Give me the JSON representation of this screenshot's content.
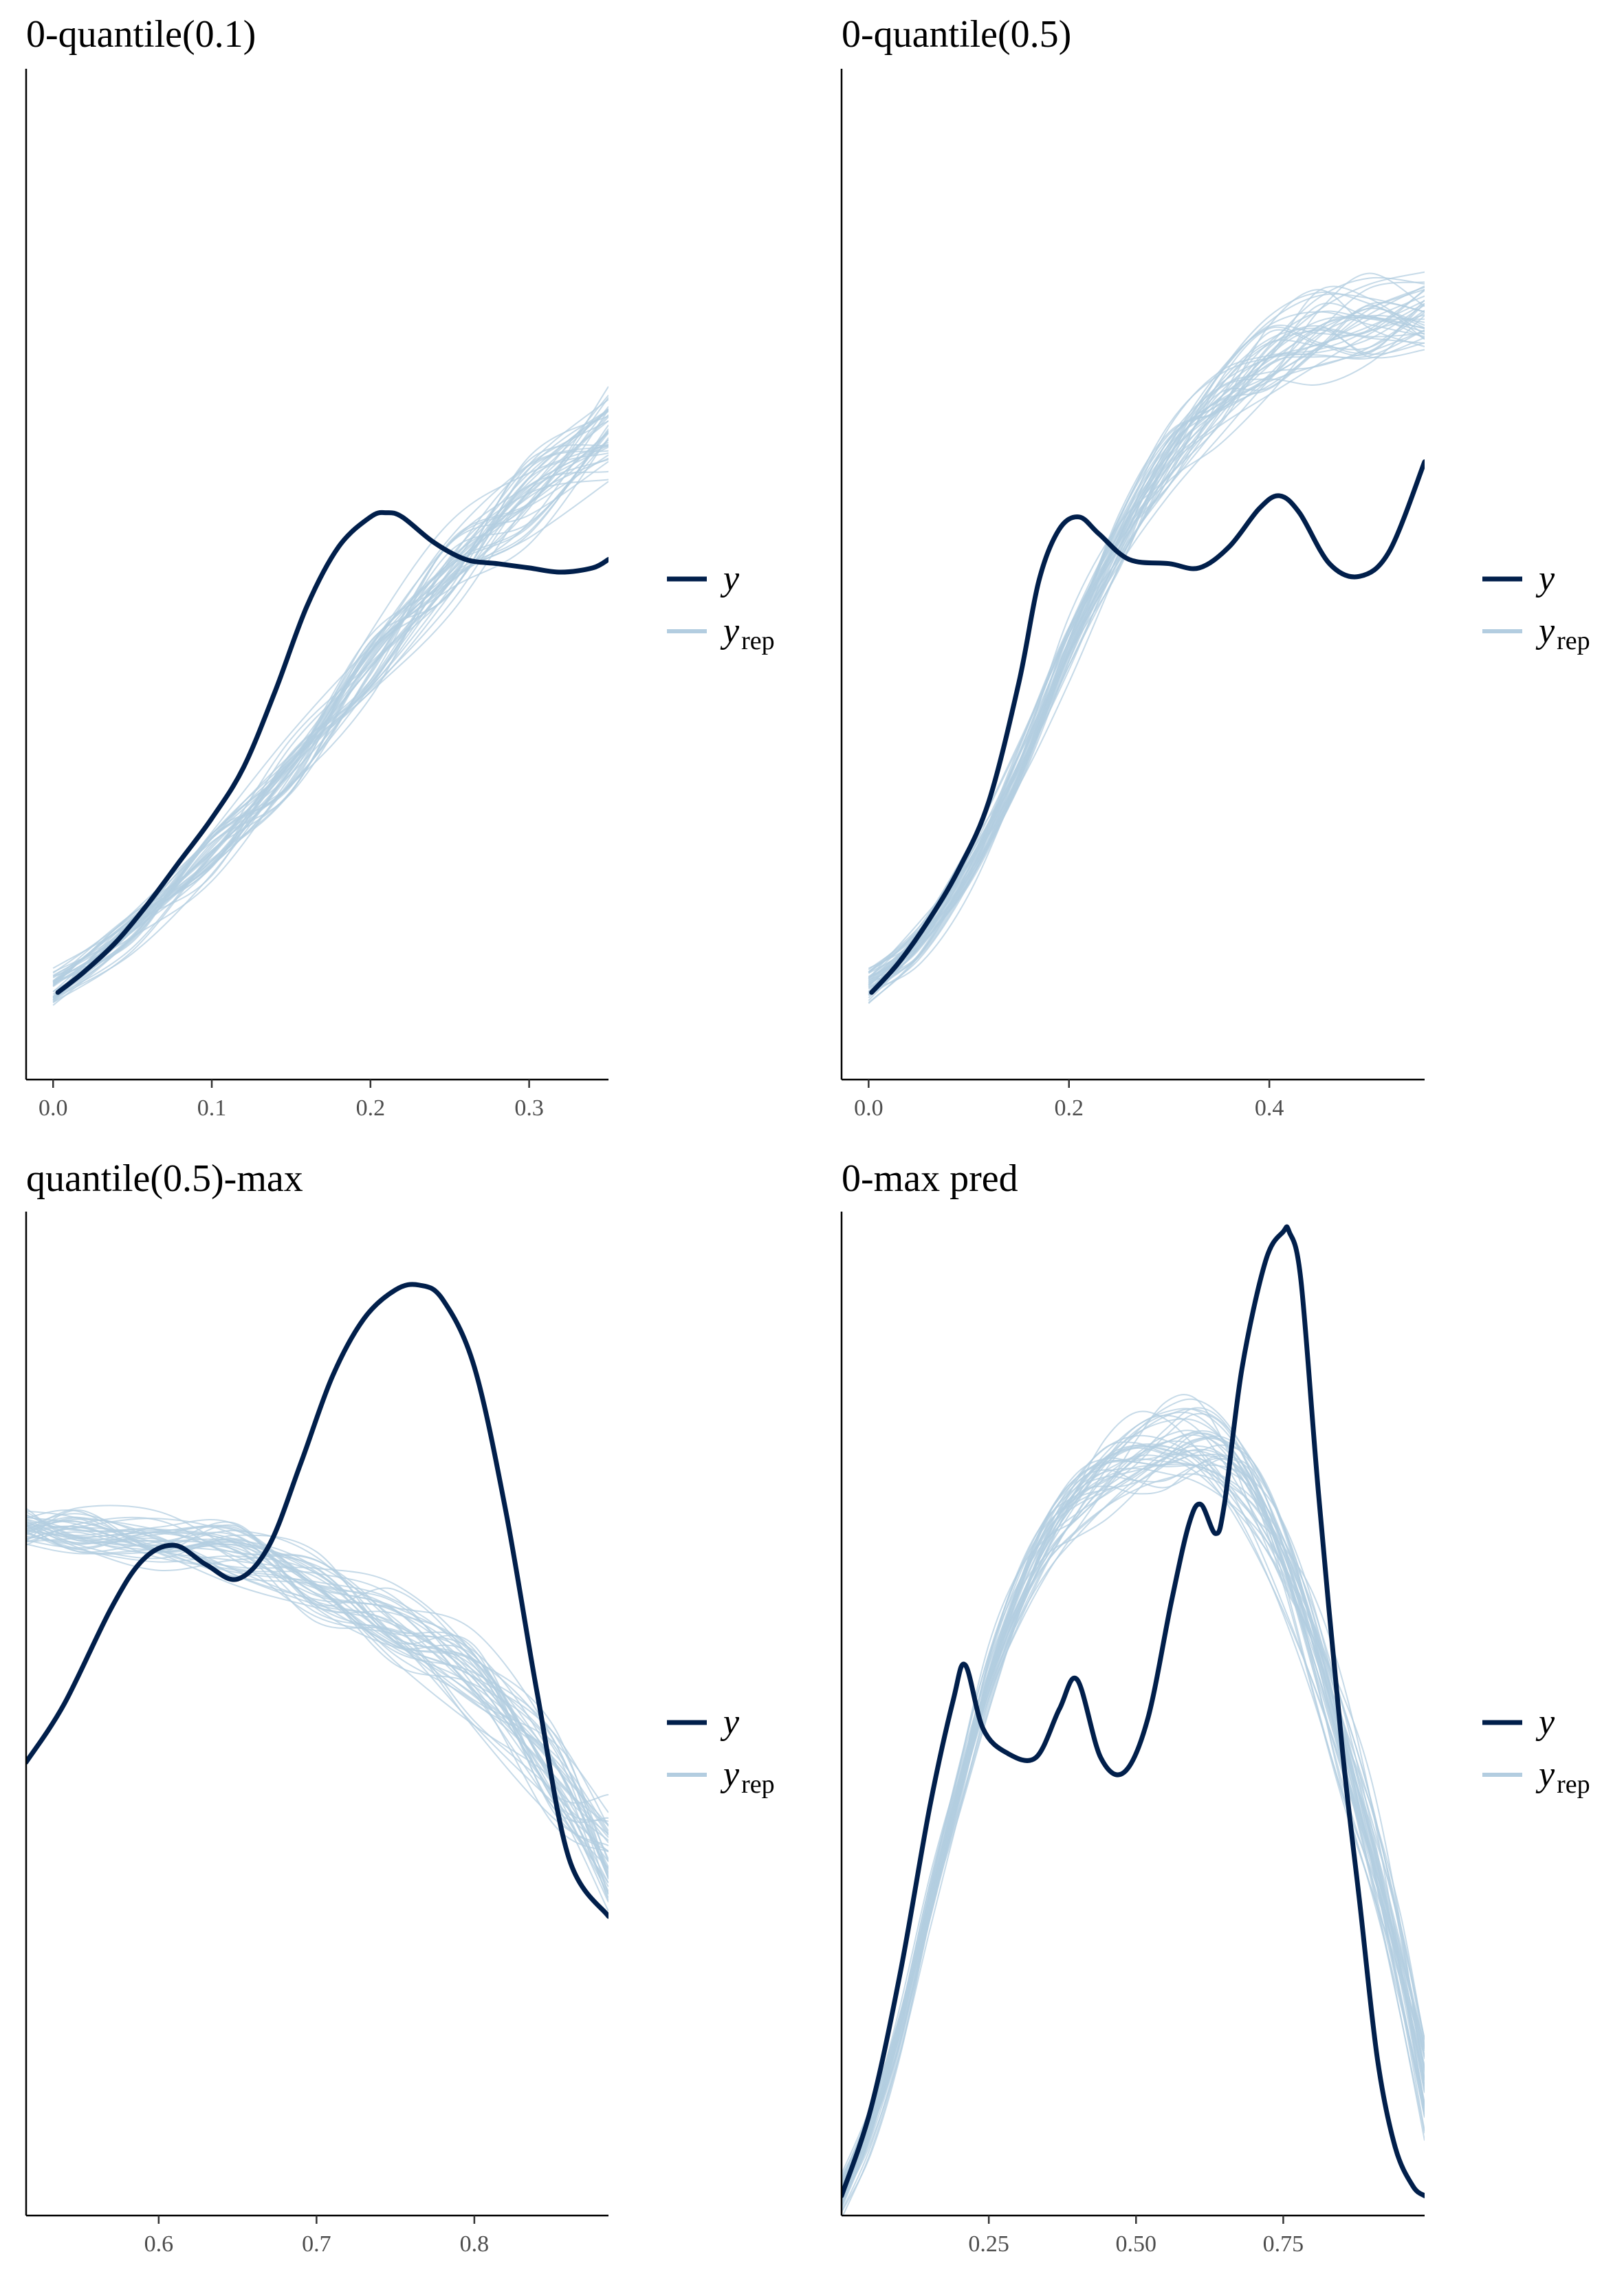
{
  "chart_data": [
    {
      "type": "line",
      "title": "0-quantile(0.1)",
      "xlabel": "",
      "ylabel": "",
      "xlim": [
        -0.017,
        0.35
      ],
      "ylim": [
        0,
        1
      ],
      "x_ticks": [
        0.0,
        0.1,
        0.2,
        0.3
      ],
      "x_tick_labels": [
        "0.0",
        "0.1",
        "0.2",
        "0.3"
      ],
      "grid": false,
      "legend_position": "right",
      "legend": [
        {
          "label": "y",
          "subscript": "",
          "color": "#011f4b"
        },
        {
          "label": "y",
          "subscript": "rep",
          "color": "#b3cde0"
        }
      ],
      "series": [
        {
          "name": "y",
          "color": "#011f4b",
          "x": [
            0.003,
            0.02,
            0.04,
            0.06,
            0.08,
            0.1,
            0.12,
            0.14,
            0.16,
            0.18,
            0.2,
            0.21,
            0.22,
            0.24,
            0.26,
            0.28,
            0.3,
            0.32,
            0.34,
            0.35
          ],
          "y": [
            0.055,
            0.08,
            0.115,
            0.16,
            0.21,
            0.26,
            0.32,
            0.41,
            0.51,
            0.58,
            0.615,
            0.62,
            0.615,
            0.585,
            0.565,
            0.56,
            0.555,
            0.55,
            0.555,
            0.565
          ]
        },
        {
          "name": "y_rep",
          "color": "#b3cde0",
          "note_replicates": 40,
          "x": [
            0.0,
            0.05,
            0.1,
            0.15,
            0.2,
            0.25,
            0.3,
            0.35
          ],
          "y": [
            0.06,
            0.13,
            0.22,
            0.32,
            0.44,
            0.55,
            0.64,
            0.72
          ]
        }
      ]
    },
    {
      "type": "line",
      "title": "0-quantile(0.5)",
      "xlabel": "",
      "ylabel": "",
      "xlim": [
        -0.027,
        0.555
      ],
      "ylim": [
        0,
        1
      ],
      "x_ticks": [
        0.0,
        0.2,
        0.4
      ],
      "x_tick_labels": [
        "0.0",
        "0.2",
        "0.4"
      ],
      "grid": false,
      "legend_position": "right",
      "legend": [
        {
          "label": "y",
          "subscript": "",
          "color": "#011f4b"
        },
        {
          "label": "y",
          "subscript": "rep",
          "color": "#b3cde0"
        }
      ],
      "series": [
        {
          "name": "y",
          "color": "#011f4b",
          "x": [
            0.003,
            0.03,
            0.06,
            0.09,
            0.12,
            0.15,
            0.17,
            0.19,
            0.21,
            0.23,
            0.26,
            0.3,
            0.33,
            0.36,
            0.39,
            0.41,
            0.43,
            0.46,
            0.49,
            0.52,
            0.555
          ],
          "y": [
            0.055,
            0.09,
            0.14,
            0.2,
            0.28,
            0.42,
            0.54,
            0.6,
            0.615,
            0.595,
            0.565,
            0.56,
            0.555,
            0.58,
            0.625,
            0.64,
            0.62,
            0.56,
            0.545,
            0.575,
            0.68
          ]
        },
        {
          "name": "y_rep",
          "color": "#b3cde0",
          "note_replicates": 40,
          "x": [
            0.0,
            0.05,
            0.1,
            0.15,
            0.2,
            0.25,
            0.3,
            0.35,
            0.4,
            0.45,
            0.5,
            0.555
          ],
          "y": [
            0.06,
            0.11,
            0.2,
            0.32,
            0.46,
            0.58,
            0.68,
            0.75,
            0.8,
            0.83,
            0.84,
            0.845
          ]
        }
      ]
    },
    {
      "type": "line",
      "title": "quantile(0.5)-max",
      "xlabel": "",
      "ylabel": "",
      "xlim": [
        0.516,
        0.885
      ],
      "ylim": [
        0,
        1
      ],
      "x_ticks": [
        0.6,
        0.7,
        0.8
      ],
      "x_tick_labels": [
        "0.6",
        "0.7",
        "0.8"
      ],
      "grid": false,
      "legend_position": "right",
      "legend": [
        {
          "label": "y",
          "subscript": "",
          "color": "#011f4b"
        },
        {
          "label": "y",
          "subscript": "rep",
          "color": "#b3cde0"
        }
      ],
      "series": [
        {
          "name": "y",
          "color": "#011f4b",
          "x": [
            0.516,
            0.54,
            0.57,
            0.59,
            0.61,
            0.63,
            0.65,
            0.67,
            0.69,
            0.71,
            0.73,
            0.75,
            0.765,
            0.78,
            0.8,
            0.82,
            0.84,
            0.86,
            0.885
          ],
          "y": [
            0.46,
            0.52,
            0.62,
            0.67,
            0.685,
            0.665,
            0.65,
            0.685,
            0.77,
            0.86,
            0.92,
            0.95,
            0.955,
            0.94,
            0.87,
            0.72,
            0.53,
            0.36,
            0.3
          ]
        },
        {
          "name": "y_rep",
          "color": "#b3cde0",
          "note_replicates": 40,
          "x": [
            0.516,
            0.55,
            0.6,
            0.65,
            0.7,
            0.75,
            0.8,
            0.85,
            0.885
          ],
          "y": [
            0.7,
            0.7,
            0.69,
            0.675,
            0.645,
            0.6,
            0.54,
            0.45,
            0.36
          ]
        }
      ]
    },
    {
      "type": "line",
      "title": "0-max pred",
      "xlabel": "",
      "ylabel": "",
      "xlim": [
        0.0,
        0.99
      ],
      "ylim": [
        0,
        1
      ],
      "x_ticks": [
        0.25,
        0.5,
        0.75
      ],
      "x_tick_labels": [
        "0.25",
        "0.50",
        "0.75"
      ],
      "grid": false,
      "legend_position": "right",
      "legend": [
        {
          "label": "y",
          "subscript": "",
          "color": "#011f4b"
        },
        {
          "label": "y",
          "subscript": "rep",
          "color": "#b3cde0"
        }
      ],
      "series": [
        {
          "name": "y",
          "color": "#011f4b",
          "x": [
            0.0,
            0.05,
            0.1,
            0.15,
            0.19,
            0.21,
            0.24,
            0.28,
            0.33,
            0.37,
            0.4,
            0.44,
            0.48,
            0.52,
            0.56,
            0.59,
            0.61,
            0.635,
            0.65,
            0.68,
            0.72,
            0.75,
            0.76,
            0.78,
            0.81,
            0.85,
            0.88,
            0.91,
            0.94,
            0.97,
            0.99
          ],
          "y": [
            0.01,
            0.1,
            0.24,
            0.41,
            0.52,
            0.555,
            0.49,
            0.465,
            0.46,
            0.51,
            0.54,
            0.46,
            0.445,
            0.5,
            0.62,
            0.7,
            0.72,
            0.69,
            0.72,
            0.86,
            0.97,
            1.0,
            1.0,
            0.95,
            0.73,
            0.47,
            0.31,
            0.15,
            0.06,
            0.02,
            0.01
          ]
        },
        {
          "name": "y_rep",
          "color": "#b3cde0",
          "note_replicates": 40,
          "x": [
            0.0,
            0.05,
            0.1,
            0.15,
            0.2,
            0.25,
            0.3,
            0.35,
            0.4,
            0.45,
            0.5,
            0.55,
            0.6,
            0.65,
            0.7,
            0.75,
            0.8,
            0.85,
            0.9,
            0.95,
            0.99
          ],
          "y": [
            0.01,
            0.08,
            0.18,
            0.31,
            0.43,
            0.54,
            0.62,
            0.68,
            0.72,
            0.75,
            0.77,
            0.78,
            0.78,
            0.76,
            0.72,
            0.66,
            0.58,
            0.48,
            0.37,
            0.24,
            0.12
          ]
        }
      ]
    }
  ]
}
